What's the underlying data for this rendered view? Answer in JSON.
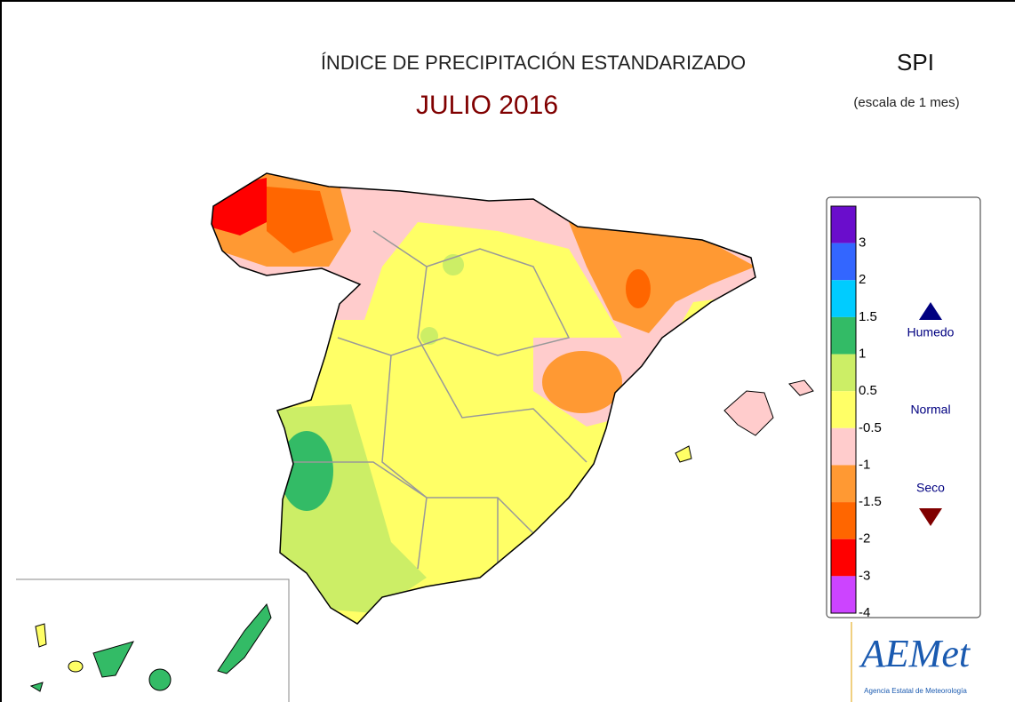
{
  "header": {
    "title": "ÍNDICE DE PRECIPITACIÓN ESTANDARIZADO",
    "subtitle": "JULIO 2016",
    "index": "SPI",
    "scale": "(escala de 1 mes)"
  },
  "legend": {
    "colors": [
      "#6a0dcc",
      "#3366ff",
      "#00ccff",
      "#33bb66",
      "#ccee66",
      "#ffff66",
      "#ffcccc",
      "#ff9933",
      "#ff6600",
      "#ff0000",
      "#cc44ff"
    ],
    "labels": [
      3,
      2,
      1.5,
      1,
      0.5,
      -0.5,
      -1,
      -1.5,
      -2,
      -3,
      -4
    ],
    "wet": "Humedo",
    "normal": "Normal",
    "dry": "Seco"
  },
  "logo": {
    "name": "AEMet",
    "agency": "Agencia Estatal de Meteorología"
  }
}
